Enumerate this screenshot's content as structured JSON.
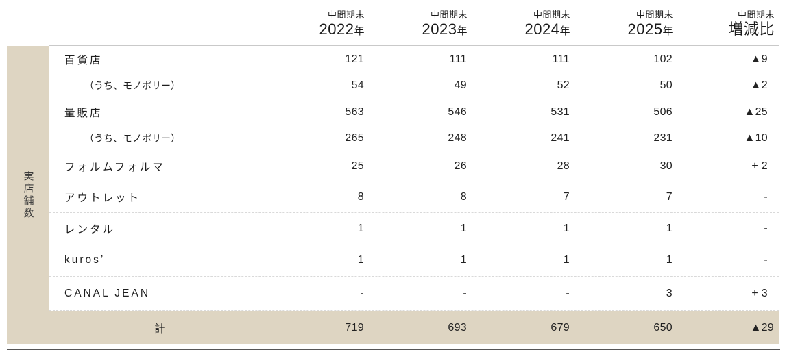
{
  "table": {
    "group_label": "実店舗数",
    "columns": [
      {
        "period": "中間期末",
        "year": "2022",
        "year_suffix": "年"
      },
      {
        "period": "中間期末",
        "year": "2023",
        "year_suffix": "年"
      },
      {
        "period": "中間期末",
        "year": "2024",
        "year_suffix": "年"
      },
      {
        "period": "中間期末",
        "year": "2025",
        "year_suffix": "年"
      },
      {
        "period": "中間期末",
        "year": "増減比",
        "year_suffix": ""
      }
    ],
    "rows": [
      {
        "label": "百貨店",
        "indent": false,
        "values": [
          "121",
          "111",
          "111",
          "102",
          "▲9"
        ]
      },
      {
        "label": "（うち、モノポリー）",
        "indent": true,
        "values": [
          "54",
          "49",
          "52",
          "50",
          "▲2"
        ]
      },
      {
        "label": "量販店",
        "indent": false,
        "values": [
          "563",
          "546",
          "531",
          "506",
          "▲25"
        ]
      },
      {
        "label": "（うち、モノポリー）",
        "indent": true,
        "values": [
          "265",
          "248",
          "241",
          "231",
          "▲10"
        ]
      },
      {
        "label": "フォルムフォルマ",
        "indent": false,
        "values": [
          "25",
          "26",
          "28",
          "30",
          "+ 2"
        ]
      },
      {
        "label": "アウトレット",
        "indent": false,
        "values": [
          "8",
          "8",
          "7",
          "7",
          "-"
        ]
      },
      {
        "label": "レンタル",
        "indent": false,
        "values": [
          "1",
          "1",
          "1",
          "1",
          "-"
        ]
      },
      {
        "label": "kuros’",
        "indent": false,
        "values": [
          "1",
          "1",
          "1",
          "1",
          "-"
        ]
      },
      {
        "label": "CANAL JEAN",
        "indent": false,
        "values": [
          "-",
          "-",
          "-",
          "3",
          "+ 3"
        ]
      }
    ],
    "total_row": {
      "label": "計",
      "values": [
        "719",
        "693",
        "679",
        "650",
        "▲29"
      ]
    }
  },
  "colors": {
    "accent_beige": "#ded5c2",
    "text": "#1e1e1e",
    "dashed_divider": "#d9d9d9",
    "header_rule": "#c9c9c9",
    "bottom_rule": "#555555"
  }
}
